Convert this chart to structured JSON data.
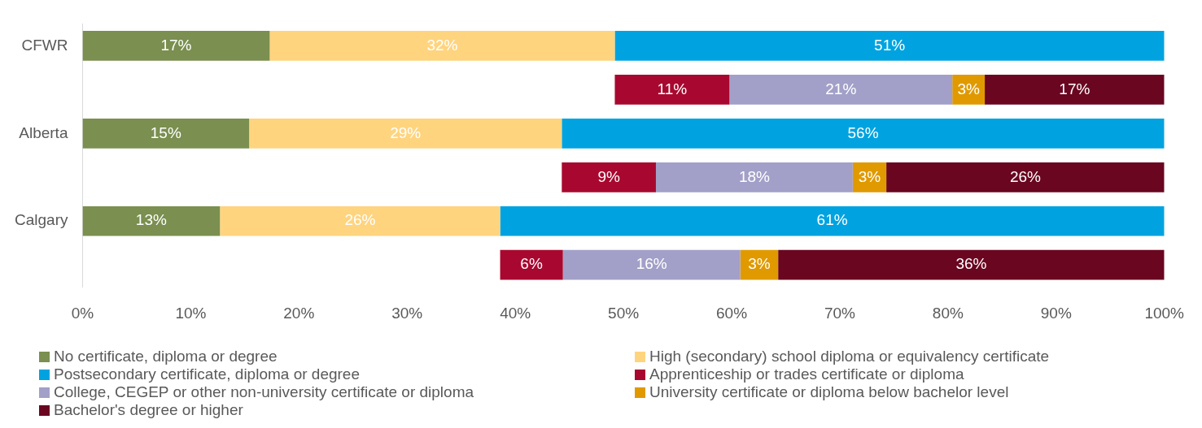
{
  "chart_data": {
    "type": "bar",
    "orientation": "horizontal",
    "categories": [
      "CFWR",
      null,
      "Alberta",
      null,
      "Calgary",
      null
    ],
    "series": [
      {
        "name": "No certificate, diploma or degree",
        "color": "#7a8f50",
        "base": [
          0,
          null,
          0,
          null,
          0,
          null
        ],
        "values": [
          17.3,
          null,
          15.4,
          null,
          12.7,
          null
        ],
        "value_labels": [
          "17%",
          null,
          "15%",
          null,
          "13%",
          null
        ]
      },
      {
        "name": "High (secondary) school diploma or equivalency certificate",
        "color": "#ffd47f",
        "base": [
          17.3,
          null,
          15.4,
          null,
          12.7,
          null
        ],
        "values": [
          31.9,
          null,
          28.9,
          null,
          25.9,
          null
        ],
        "value_labels": [
          "32%",
          null,
          "29%",
          null,
          "26%",
          null
        ]
      },
      {
        "name": "Postsecondary certificate, diploma or degree",
        "color": "#00a3e0",
        "base": [
          49.2,
          null,
          44.3,
          null,
          38.6,
          null
        ],
        "values": [
          50.8,
          null,
          55.7,
          null,
          61.4,
          null
        ],
        "value_labels": [
          "51%",
          null,
          "56%",
          null,
          "61%",
          null
        ]
      },
      {
        "name": "Apprenticeship or trades certificate or diploma",
        "color": "#a8082f",
        "base": [
          null,
          49.2,
          null,
          44.3,
          null,
          38.6
        ],
        "values": [
          null,
          10.6,
          null,
          8.7,
          null,
          5.8
        ],
        "value_labels": [
          null,
          "11%",
          null,
          "9%",
          null,
          "6%"
        ]
      },
      {
        "name": "College, CEGEP or other non-university certificate or diploma",
        "color": "#a2a0c8",
        "base": [
          null,
          59.8,
          null,
          53.0,
          null,
          44.4
        ],
        "values": [
          null,
          20.6,
          null,
          18.2,
          null,
          16.4
        ],
        "value_labels": [
          null,
          "21%",
          null,
          "18%",
          null,
          "16%"
        ]
      },
      {
        "name": "University certificate or diploma below bachelor level",
        "color": "#e09a00",
        "base": [
          null,
          80.4,
          null,
          71.2,
          null,
          60.8
        ],
        "values": [
          null,
          3.0,
          null,
          3.1,
          null,
          3.5
        ],
        "value_labels": [
          null,
          "3%",
          null,
          "3%",
          null,
          "3%"
        ]
      },
      {
        "name": "Bachelor's degree or higher",
        "color": "#6a0620",
        "base": [
          null,
          83.4,
          null,
          74.3,
          null,
          64.3
        ],
        "values": [
          null,
          16.6,
          null,
          25.7,
          null,
          35.7
        ],
        "value_labels": [
          null,
          "17%",
          null,
          "26%",
          null,
          "36%"
        ]
      }
    ],
    "xlim": [
      0,
      100
    ],
    "xticks": [
      {
        "value": 0,
        "label": "0%"
      },
      {
        "value": 10,
        "label": "10%"
      },
      {
        "value": 20,
        "label": "20%"
      },
      {
        "value": 30,
        "label": "30%"
      },
      {
        "value": 40,
        "label": "40%"
      },
      {
        "value": 50,
        "label": "50%"
      },
      {
        "value": 60,
        "label": "60%"
      },
      {
        "value": 70,
        "label": "70%"
      },
      {
        "value": 80,
        "label": "80%"
      },
      {
        "value": 90,
        "label": "90%"
      },
      {
        "value": 100,
        "label": "100%"
      }
    ],
    "grid": false,
    "legend": "bottom"
  }
}
